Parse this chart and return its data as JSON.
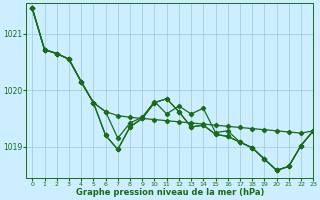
{
  "xlabel": "Graphe pression niveau de la mer (hPa)",
  "background_color": "#cceeff",
  "grid_color": "#99cccc",
  "line_color": "#1a6b1a",
  "xlim": [
    -0.5,
    23
  ],
  "ylim": [
    1018.45,
    1021.55
  ],
  "yticks": [
    1019,
    1020,
    1021
  ],
  "xticks": [
    0,
    1,
    2,
    3,
    4,
    5,
    6,
    7,
    8,
    9,
    10,
    11,
    12,
    13,
    14,
    15,
    16,
    17,
    18,
    19,
    20,
    21,
    22,
    23
  ],
  "series": [
    [
      1021.45,
      1020.72,
      1020.65,
      1020.55,
      1020.15,
      1019.78,
      1019.62,
      1019.55,
      1019.52,
      1019.5,
      1019.48,
      1019.46,
      1019.44,
      1019.42,
      1019.4,
      1019.38,
      1019.36,
      1019.34,
      1019.32,
      1019.3,
      1019.28,
      1019.26,
      1019.24,
      1019.28
    ],
    [
      1021.45,
      1020.72,
      1020.65,
      1020.55,
      1020.15,
      1019.78,
      1019.2,
      1018.95,
      1019.35,
      1019.5,
      1019.78,
      1019.85,
      1019.62,
      1019.35,
      1019.38,
      1019.22,
      1019.18,
      1019.08,
      1018.98,
      1018.78,
      1018.58,
      1018.65,
      1019.02,
      1019.28
    ],
    [
      1021.45,
      1020.72,
      1020.65,
      1020.55,
      1020.15,
      1019.78,
      1019.2,
      1018.95,
      1019.35,
      1019.5,
      1019.78,
      1019.85,
      1019.62,
      1019.35,
      1019.38,
      1019.22,
      1019.18,
      1019.08,
      1018.98,
      1018.78,
      1018.58,
      1018.65,
      1019.02,
      1019.28
    ],
    [
      1021.45,
      1020.72,
      1020.65,
      1020.55,
      1020.15,
      1019.78,
      1019.62,
      1019.15,
      1019.42,
      1019.52,
      1019.8,
      1019.58,
      1019.72,
      1019.58,
      1019.68,
      1019.25,
      1019.28,
      1019.08,
      1018.98,
      1018.78,
      1018.58,
      1018.65,
      1019.02,
      1019.28
    ]
  ]
}
